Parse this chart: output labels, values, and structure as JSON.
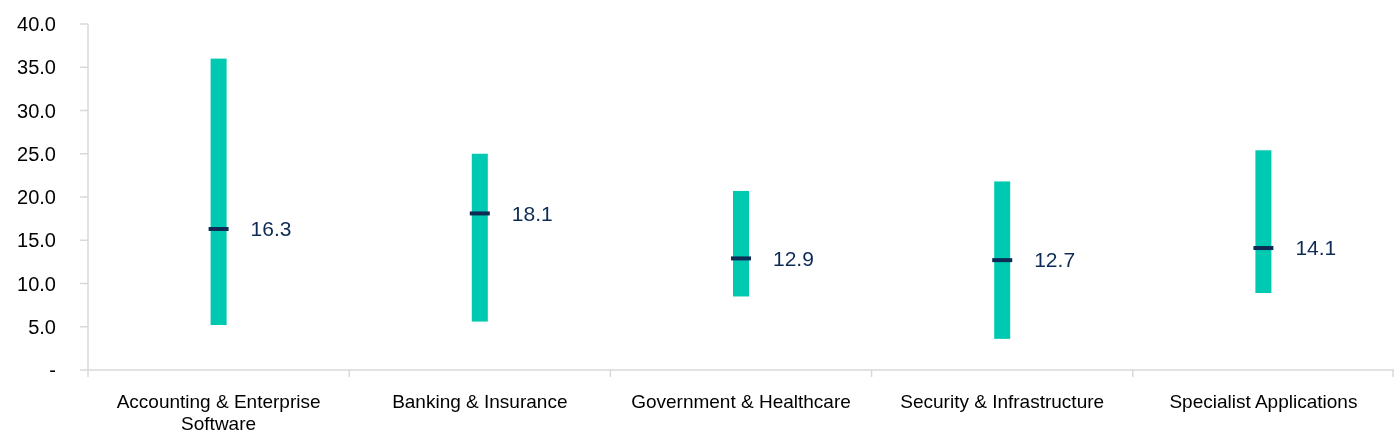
{
  "chart_data": {
    "type": "box",
    "categories": [
      "Accounting & Enterprise Software",
      "Banking & Insurance",
      "Government & Healthcare",
      "Security & Infrastructure",
      "Specialist Applications"
    ],
    "series": [
      {
        "color": "#00c9b1",
        "boxes": [
          {
            "low": 5.2,
            "q1": 5.2,
            "median": 16.3,
            "q3": 36.0,
            "high": 36.0
          },
          {
            "low": 5.6,
            "q1": 5.6,
            "median": 18.1,
            "q3": 25.0,
            "high": 25.0
          },
          {
            "low": 8.5,
            "q1": 8.5,
            "median": 12.9,
            "q3": 20.7,
            "high": 20.7
          },
          {
            "low": 3.6,
            "q1": 3.6,
            "median": 12.7,
            "q3": 21.8,
            "high": 21.8
          },
          {
            "low": 8.9,
            "q1": 8.9,
            "median": 14.1,
            "q3": 25.4,
            "high": 25.4
          }
        ]
      }
    ],
    "annotations": [
      {
        "text": "16.3",
        "x": "Accounting & Enterprise Software",
        "y": 16.3
      },
      {
        "text": "18.1",
        "x": "Banking & Insurance",
        "y": 18.1
      },
      {
        "text": "12.9",
        "x": "Government & Healthcare",
        "y": 12.9
      },
      {
        "text": "12.7",
        "x": "Security & Infrastructure",
        "y": 12.7
      },
      {
        "text": "14.1",
        "x": "Specialist Applications",
        "y": 14.1
      }
    ],
    "ylim": [
      0,
      40
    ],
    "yticks": [
      {
        "value": 0,
        "label": "-"
      },
      {
        "value": 5,
        "label": "5.0"
      },
      {
        "value": 10,
        "label": "10.0"
      },
      {
        "value": 15,
        "label": "15.0"
      },
      {
        "value": 20,
        "label": "20.0"
      },
      {
        "value": 25,
        "label": "25.0"
      },
      {
        "value": 30,
        "label": "30.0"
      },
      {
        "value": 35,
        "label": "35.0"
      },
      {
        "value": 40,
        "label": "40.0"
      }
    ],
    "grid": false
  }
}
